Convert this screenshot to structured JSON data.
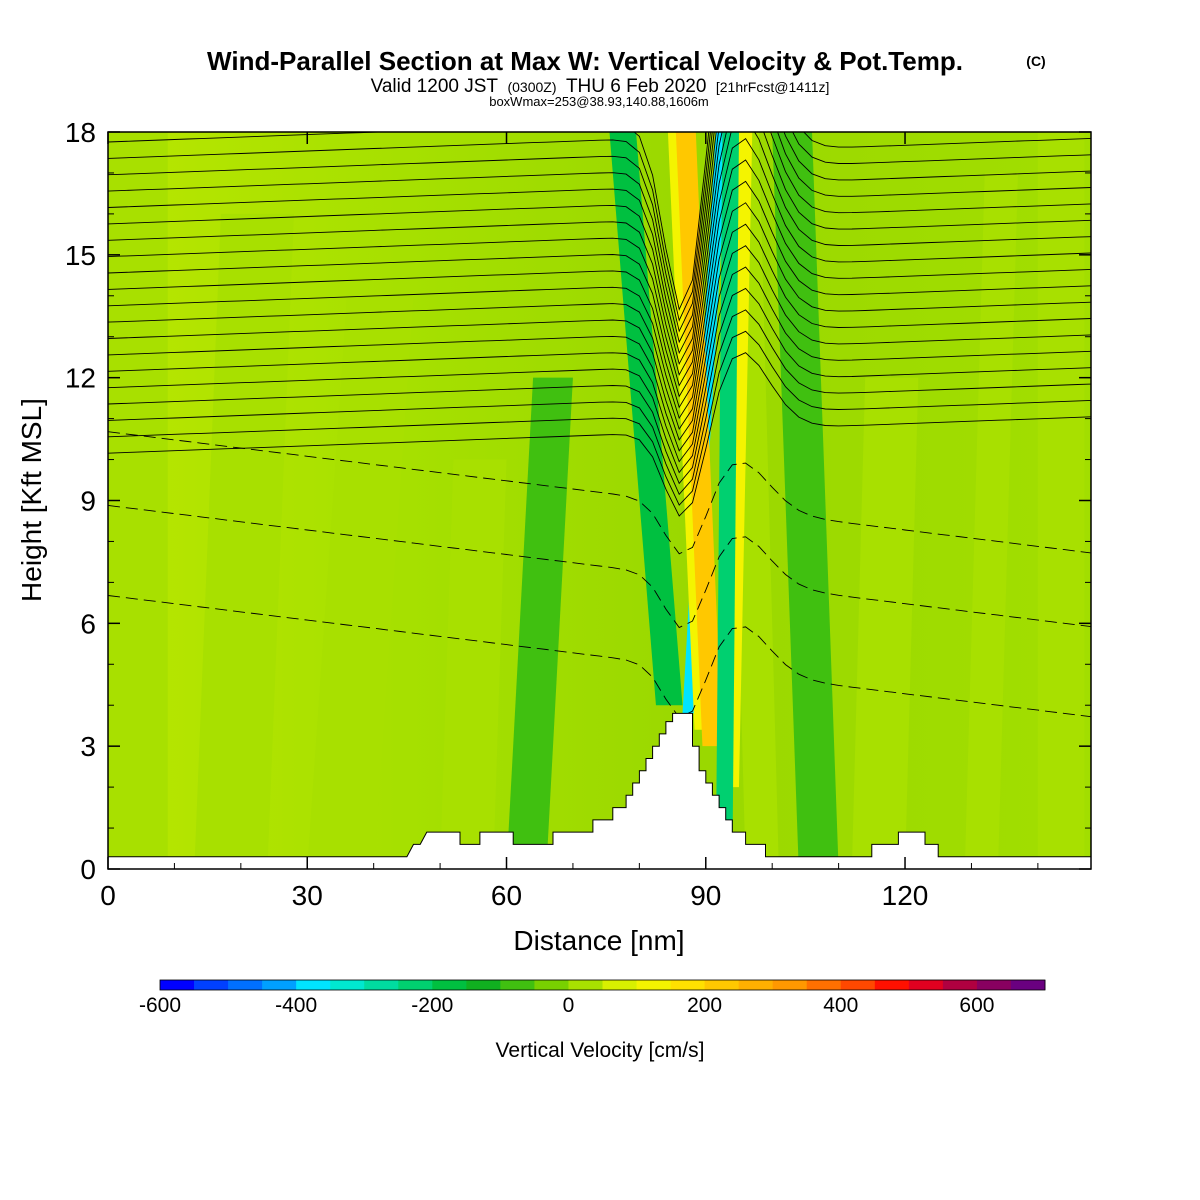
{
  "header": {
    "title": "Wind-Parallel Section at Max W: Vertical Velocity & Pot.Temp.",
    "copyright": "(C)",
    "valid_prefix": "Valid 1200 JST",
    "valid_utc": "(0300Z)",
    "valid_date": "THU 6 Feb 2020",
    "forecast": "[21hrFcst@1411z]",
    "box_info": "boxWmax=253@38.93,140.88,1606m"
  },
  "chart_data": {
    "type": "heatmap",
    "xlabel": "Distance [nm]",
    "ylabel": "Height [Kft MSL]",
    "xlim": [
      0,
      148
    ],
    "ylim": [
      0,
      18
    ],
    "x_ticks": [
      0,
      30,
      60,
      90,
      120
    ],
    "y_ticks": [
      0,
      3,
      6,
      9,
      12,
      15,
      18
    ],
    "colorbar": {
      "label": "Vertical Velocity [cm/s]",
      "range": [
        -600,
        700
      ],
      "step": 50,
      "tick_values": [
        -600,
        -400,
        -200,
        0,
        200,
        400,
        600
      ],
      "colors": [
        "#0000ff",
        "#0040ff",
        "#0070ff",
        "#00a0ff",
        "#00e4ff",
        "#00e8d0",
        "#00dca0",
        "#00d070",
        "#00c040",
        "#10b020",
        "#40c010",
        "#78d000",
        "#a8e000",
        "#d8f000",
        "#f4f400",
        "#ffe000",
        "#ffc800",
        "#ffb000",
        "#ff9800",
        "#ff7000",
        "#ff4800",
        "#ff1000",
        "#e00020",
        "#b00040",
        "#880060",
        "#6a0080"
      ]
    },
    "terrain_profile": [
      [
        0,
        0.3
      ],
      [
        45,
        0.3
      ],
      [
        46,
        0.6
      ],
      [
        47,
        0.6
      ],
      [
        48,
        0.9
      ],
      [
        53,
        0.9
      ],
      [
        53,
        0.6
      ],
      [
        56,
        0.6
      ],
      [
        56,
        0.9
      ],
      [
        61,
        0.9
      ],
      [
        61,
        0.6
      ],
      [
        67,
        0.6
      ],
      [
        67,
        0.9
      ],
      [
        73,
        0.9
      ],
      [
        73,
        1.2
      ],
      [
        76,
        1.2
      ],
      [
        76,
        1.5
      ],
      [
        78,
        1.5
      ],
      [
        78,
        1.8
      ],
      [
        79,
        1.8
      ],
      [
        79,
        2.1
      ],
      [
        80,
        2.1
      ],
      [
        80,
        2.4
      ],
      [
        81,
        2.4
      ],
      [
        81,
        2.7
      ],
      [
        82,
        2.7
      ],
      [
        82,
        3.0
      ],
      [
        83,
        3.0
      ],
      [
        83,
        3.3
      ],
      [
        84,
        3.3
      ],
      [
        84,
        3.6
      ],
      [
        85,
        3.6
      ],
      [
        85,
        3.8
      ],
      [
        88,
        3.8
      ],
      [
        88,
        3.0
      ],
      [
        89,
        3.0
      ],
      [
        89,
        2.4
      ],
      [
        90,
        2.4
      ],
      [
        90,
        2.1
      ],
      [
        91,
        2.1
      ],
      [
        91,
        1.8
      ],
      [
        92,
        1.8
      ],
      [
        92,
        1.5
      ],
      [
        93,
        1.5
      ],
      [
        93,
        1.2
      ],
      [
        94,
        1.2
      ],
      [
        94,
        0.9
      ],
      [
        96,
        0.9
      ],
      [
        96,
        0.6
      ],
      [
        99,
        0.6
      ],
      [
        99,
        0.3
      ],
      [
        115,
        0.3
      ],
      [
        115,
        0.6
      ],
      [
        119,
        0.6
      ],
      [
        119,
        0.9
      ],
      [
        123,
        0.9
      ],
      [
        123,
        0.6
      ],
      [
        125,
        0.6
      ],
      [
        125,
        0.3
      ],
      [
        148,
        0.3
      ]
    ],
    "updraft_core": {
      "x": 90,
      "peak_cm_s": 253
    },
    "downdraft_core": {
      "x": 87
    }
  }
}
